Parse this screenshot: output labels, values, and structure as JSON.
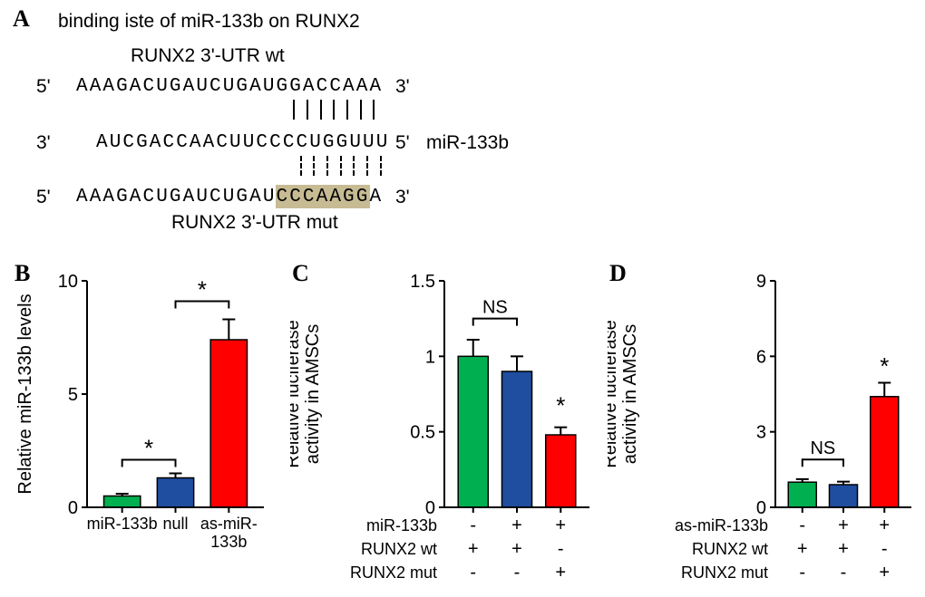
{
  "colors": {
    "green": "#00b050",
    "blue": "#1f4ea1",
    "red": "#ff0000",
    "black": "#000000",
    "highlight": "#c6bb93"
  },
  "panelA": {
    "letter": "A",
    "title": "binding iste of miR-133b on RUNX2",
    "wt_label": "RUNX2 3'-UTR wt",
    "mut_label": "RUNX2 3'-UTR mut",
    "seq_wt": "AAAGACUGAUCUGAUGGACCAAA",
    "seq_mir": "AUCGACCAACUUCCCCUGGUUU",
    "seq_mut": "AAAGACUGAUCUGAUCCCAAGGA",
    "row1": {
      "left": "5'",
      "right": "3'"
    },
    "row2": {
      "left": "3'",
      "right": "5'",
      "right_extra": "miR-133b"
    },
    "row3": {
      "left": "5'",
      "right": "3'"
    }
  },
  "panelB": {
    "letter": "B",
    "y_label": "Relative miR-133b levels",
    "ylim": [
      0,
      10
    ],
    "ytick_step": 5,
    "categories": [
      "miR-133b",
      "null",
      "as-miR-\n133b"
    ],
    "values": [
      0.5,
      1.3,
      7.4
    ],
    "errors": [
      0.1,
      0.2,
      0.9
    ],
    "colors": [
      "#00b050",
      "#1f4ea1",
      "#ff0000"
    ],
    "sig": [
      {
        "from": 0,
        "to": 1,
        "y": 2.1,
        "label": "*"
      },
      {
        "from": 1,
        "to": 2,
        "y": 9.1,
        "label": "*"
      }
    ]
  },
  "panelC": {
    "letter": "C",
    "y_label": "Relative luciferase\nactivity in AMSCs",
    "ylim": [
      0,
      1.5
    ],
    "ytick_step": 0.5,
    "values": [
      1.0,
      0.9,
      0.48
    ],
    "errors": [
      0.11,
      0.1,
      0.05
    ],
    "colors": [
      "#00b050",
      "#1f4ea1",
      "#ff0000"
    ],
    "rowlabels": [
      "miR-133b",
      "RUNX2 wt",
      "RUNX2 mut"
    ],
    "pm": [
      [
        "-",
        "+",
        "+"
      ],
      [
        "+",
        "+",
        "-"
      ],
      [
        "-",
        "-",
        "+"
      ]
    ],
    "sig_ns": {
      "from": 0,
      "to": 1,
      "y": 1.25,
      "label": "NS"
    },
    "sig_star": {
      "bar": 2,
      "y": 0.62,
      "label": "*"
    }
  },
  "panelD": {
    "letter": "D",
    "y_label": "Relative luciferase\nactivity in AMSCs",
    "ylim": [
      0,
      9
    ],
    "ytick_step": 3,
    "values": [
      1.0,
      0.9,
      4.4
    ],
    "errors": [
      0.12,
      0.12,
      0.55
    ],
    "colors": [
      "#00b050",
      "#1f4ea1",
      "#ff0000"
    ],
    "rowlabels": [
      "as-miR-133b",
      "RUNX2 wt",
      "RUNX2 mut"
    ],
    "pm": [
      [
        "-",
        "+",
        "+"
      ],
      [
        "+",
        "+",
        "-"
      ],
      [
        "-",
        "-",
        "+"
      ]
    ],
    "sig_ns": {
      "from": 0,
      "to": 1,
      "y": 1.9,
      "label": "NS"
    },
    "sig_star": {
      "bar": 2,
      "y": 5.3,
      "label": "*"
    }
  }
}
